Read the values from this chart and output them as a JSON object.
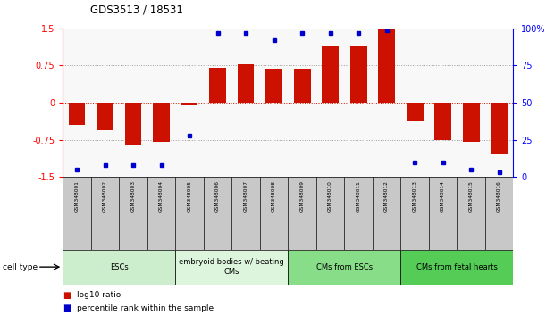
{
  "title": "GDS3513 / 18531",
  "samples": [
    "GSM348001",
    "GSM348002",
    "GSM348003",
    "GSM348004",
    "GSM348005",
    "GSM348006",
    "GSM348007",
    "GSM348008",
    "GSM348009",
    "GSM348010",
    "GSM348011",
    "GSM348012",
    "GSM348013",
    "GSM348014",
    "GSM348015",
    "GSM348016"
  ],
  "log10_ratio": [
    -0.45,
    -0.55,
    -0.85,
    -0.8,
    -0.05,
    0.7,
    0.78,
    0.68,
    0.68,
    1.15,
    1.15,
    1.5,
    -0.38,
    -0.75,
    -0.8,
    -1.05
  ],
  "percentile_rank": [
    5,
    8,
    8,
    8,
    28,
    97,
    97,
    92,
    97,
    97,
    97,
    99,
    10,
    10,
    5,
    3
  ],
  "cell_types": [
    {
      "label": "ESCs",
      "start": 0,
      "end": 4,
      "color": "#cceecc"
    },
    {
      "label": "embryoid bodies w/ beating\nCMs",
      "start": 4,
      "end": 8,
      "color": "#ddf4dd"
    },
    {
      "label": "CMs from ESCs",
      "start": 8,
      "end": 12,
      "color": "#88dd88"
    },
    {
      "label": "CMs from fetal hearts",
      "start": 12,
      "end": 16,
      "color": "#55cc55"
    }
  ],
  "ylim": [
    -1.5,
    1.5
  ],
  "bar_color": "#cc1100",
  "dot_color": "#0000cc",
  "zero_line_color": "#cc1100",
  "background_color": "#ffffff",
  "plot_bg_color": "#f8f8f8",
  "sample_box_color": "#c8c8c8",
  "yticks_left": [
    -1.5,
    -0.75,
    0,
    0.75,
    1.5
  ],
  "yticks_right": [
    0,
    25,
    50,
    75,
    100
  ],
  "ytick_labels_left": [
    "-1.5",
    "-0.75",
    "0",
    "0.75",
    "1.5"
  ],
  "ytick_labels_right": [
    "0",
    "25",
    "50",
    "75",
    "100%"
  ]
}
